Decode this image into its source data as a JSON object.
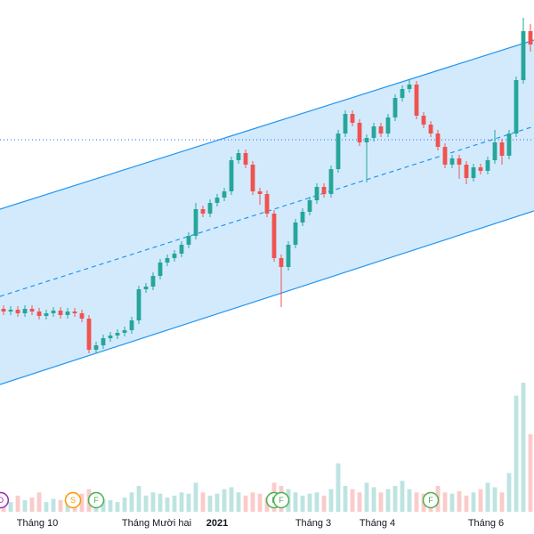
{
  "chart_data": {
    "type": "candlestick",
    "xlim": [
      -0.5,
      74.5
    ],
    "ylim": [
      10,
      54
    ],
    "vlim": [
      0,
      200
    ],
    "xticks": [
      {
        "value": 4.75,
        "label": "Tháng 10"
      },
      {
        "value": 21.5,
        "label": "Tháng Mười hai"
      },
      {
        "value": 30,
        "label": "2021"
      },
      {
        "value": 43.5,
        "label": "Tháng 3"
      },
      {
        "value": 52.5,
        "label": "Tháng 4"
      },
      {
        "value": 67.75,
        "label": "Tháng 6"
      }
    ],
    "up_color": "#26a69a",
    "down_color": "#ef5350",
    "channel": {
      "x": [
        -0.5,
        74.5
      ],
      "upper": [
        30.5,
        49.5
      ],
      "middle": [
        20.7,
        39.8
      ],
      "lower": [
        10.8,
        30.3
      ],
      "color": "#2196f3"
    },
    "hline": 38.3,
    "open": [
      19.3,
      19.0,
      19.2,
      18.8,
      19.3,
      19.0,
      18.5,
      18.8,
      19.1,
      18.6,
      19.0,
      18.8,
      18.2,
      14.7,
      15.2,
      16.0,
      16.3,
      16.6,
      16.9,
      18.0,
      21.5,
      21.8,
      23.0,
      24.5,
      25.0,
      25.5,
      26.5,
      27.5,
      30.5,
      30.0,
      31.2,
      31.8,
      32.5,
      36.0,
      36.8,
      35.5,
      32.5,
      32.2,
      30.0,
      25.0,
      24.0,
      26.5,
      29.0,
      30.2,
      31.5,
      33.0,
      32.2,
      35.0,
      39.0,
      41.2,
      40.2,
      38.0,
      38.5,
      39.8,
      39.0,
      40.8,
      43.0,
      44.0,
      44.5,
      41.0,
      40.0,
      39.0,
      37.5,
      35.5,
      36.2,
      35.5,
      34.0,
      35.2,
      34.8,
      36.0,
      38.0,
      36.5,
      39.0,
      45.0,
      50.5
    ],
    "high": [
      19.7,
      19.6,
      19.6,
      19.7,
      19.7,
      19.4,
      19.2,
      19.5,
      19.5,
      19.4,
      19.4,
      19.2,
      18.6,
      15.6,
      16.4,
      16.7,
      17.0,
      17.3,
      18.4,
      21.9,
      22.2,
      23.4,
      24.9,
      25.4,
      25.9,
      26.9,
      27.9,
      31.2,
      30.9,
      31.6,
      32.2,
      32.9,
      36.4,
      37.2,
      37.2,
      35.9,
      32.9,
      32.6,
      30.4,
      25.4,
      26.9,
      29.4,
      30.6,
      31.9,
      33.4,
      33.4,
      35.4,
      39.4,
      41.6,
      41.6,
      40.6,
      38.9,
      40.2,
      40.2,
      41.2,
      43.4,
      44.4,
      45.0,
      44.9,
      41.4,
      40.4,
      39.4,
      37.9,
      36.6,
      36.6,
      35.9,
      35.6,
      35.6,
      36.4,
      39.4,
      38.4,
      39.4,
      45.4,
      52.0,
      51.3
    ],
    "low": [
      18.6,
      18.6,
      18.4,
      18.4,
      18.6,
      18.1,
      18.1,
      18.4,
      18.2,
      18.2,
      18.4,
      17.8,
      14.3,
      14.3,
      14.8,
      15.6,
      15.9,
      16.2,
      16.5,
      17.6,
      21.1,
      21.4,
      22.6,
      24.1,
      24.6,
      25.1,
      26.1,
      27.1,
      29.6,
      29.6,
      30.8,
      31.4,
      32.1,
      35.6,
      35.1,
      32.1,
      31.0,
      29.6,
      24.6,
      19.5,
      23.6,
      26.1,
      28.6,
      29.8,
      31.1,
      31.8,
      31.8,
      34.6,
      38.6,
      39.8,
      37.6,
      33.5,
      38.1,
      38.6,
      38.6,
      40.4,
      42.6,
      43.6,
      40.6,
      39.6,
      38.6,
      37.1,
      35.1,
      35.1,
      33.9,
      33.3,
      33.6,
      34.4,
      34.4,
      35.6,
      35.5,
      36.1,
      38.6,
      44.6,
      48.2
    ],
    "close": [
      19.0,
      19.2,
      18.8,
      19.3,
      19.0,
      18.5,
      18.8,
      19.1,
      18.6,
      19.0,
      18.8,
      18.2,
      14.7,
      15.2,
      16.0,
      16.3,
      16.6,
      16.9,
      18.0,
      21.5,
      21.8,
      23.0,
      24.5,
      25.0,
      25.5,
      26.5,
      27.5,
      30.5,
      30.0,
      31.2,
      31.8,
      32.5,
      36.0,
      36.8,
      35.5,
      32.5,
      32.2,
      30.0,
      25.0,
      24.0,
      26.5,
      29.0,
      30.2,
      31.5,
      33.0,
      32.2,
      35.0,
      39.0,
      41.2,
      40.2,
      38.0,
      38.5,
      39.8,
      39.0,
      40.8,
      43.0,
      44.0,
      44.5,
      41.0,
      40.0,
      39.0,
      37.5,
      35.5,
      36.2,
      35.5,
      34.0,
      35.2,
      34.8,
      36.0,
      38.0,
      36.5,
      39.0,
      45.0,
      50.5,
      49.0
    ],
    "volume": [
      20,
      15,
      25,
      18,
      22,
      30,
      15,
      20,
      18,
      25,
      20,
      28,
      35,
      25,
      20,
      18,
      15,
      22,
      30,
      40,
      25,
      30,
      28,
      22,
      25,
      30,
      28,
      45,
      30,
      25,
      28,
      35,
      38,
      30,
      25,
      30,
      28,
      22,
      45,
      40,
      35,
      30,
      25,
      28,
      30,
      25,
      35,
      75,
      40,
      35,
      30,
      45,
      38,
      30,
      35,
      40,
      48,
      35,
      30,
      28,
      25,
      40,
      30,
      28,
      32,
      25,
      30,
      35,
      45,
      38,
      30,
      60,
      180,
      200,
      120
    ],
    "events": [
      {
        "x": -0.4,
        "label": "D",
        "color": "#9c27b0"
      },
      {
        "x": 9.75,
        "label": "S",
        "color": "#ff9800"
      },
      {
        "x": 13,
        "label": "F",
        "color": "#4caf50"
      },
      {
        "x": 38,
        "label": "F",
        "color": "#4caf50"
      },
      {
        "x": 39,
        "label": "F",
        "color": "#4caf50"
      },
      {
        "x": 60,
        "label": "F",
        "color": "#4caf50"
      }
    ]
  }
}
